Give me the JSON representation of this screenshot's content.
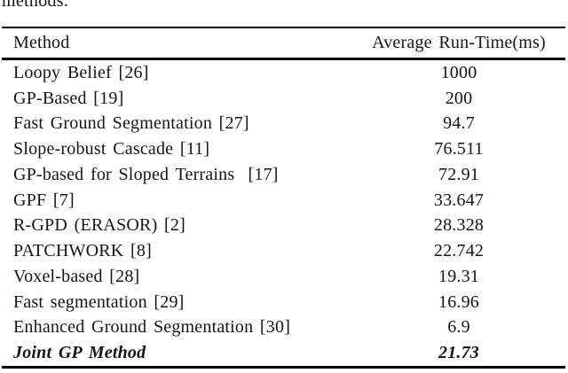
{
  "caption_fragment": "methods.",
  "colors": {
    "background": "#ffffff",
    "text": "#151515",
    "rule": "#000000"
  },
  "table": {
    "headers": {
      "method": "Method",
      "runtime": "Average Run-Time(ms)"
    },
    "rows": [
      {
        "method": "Loopy Belief [26]",
        "time": "1000"
      },
      {
        "method": "GP-Based [19]",
        "time": "200"
      },
      {
        "method": "Fast Ground Segmentation [27]",
        "time": "94.7"
      },
      {
        "method": "Slope-robust Cascade [11]",
        "time": "76.511"
      },
      {
        "method": "GP-based for Sloped Terrains  [17]",
        "time": "72.91"
      },
      {
        "method": "GPF [7]",
        "time": "33.647"
      },
      {
        "method": "R-GPD (ERASOR) [2]",
        "time": "28.328"
      },
      {
        "method": "PATCHWORK [8]",
        "time": "22.742"
      },
      {
        "method": "Voxel-based [28]",
        "time": "19.31"
      },
      {
        "method": "Fast segmentation [29]",
        "time": "16.96"
      },
      {
        "method": "Enhanced Ground Segmentation [30]",
        "time": "6.9"
      },
      {
        "method": "Joint GP Method",
        "time": "21.73"
      }
    ]
  }
}
